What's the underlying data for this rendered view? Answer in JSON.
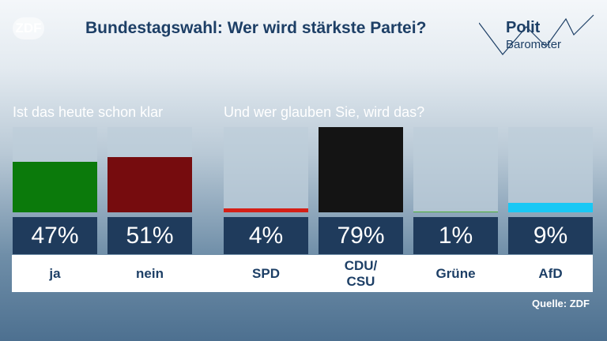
{
  "header": {
    "logo": "ZDF",
    "title": "Bundestagswahl: Wer wird stärkste Partei?",
    "brand_line1": "Polit",
    "brand_line2": "Barometer"
  },
  "chart_data": [
    {
      "type": "bar",
      "title": "Ist das heute schon klar",
      "categories": [
        "ja",
        "nein"
      ],
      "values": [
        47,
        51
      ],
      "value_labels": [
        "47%",
        "51%"
      ],
      "colors": [
        "#0b7a0b",
        "#760c0e"
      ],
      "ylim": [
        0,
        79
      ]
    },
    {
      "type": "bar",
      "title": "Und wer glauben Sie, wird das?",
      "categories": [
        "SPD",
        "CDU/\nCSU",
        "Grüne",
        "AfD"
      ],
      "values": [
        4,
        79,
        1,
        9
      ],
      "value_labels": [
        "4%",
        "79%",
        "1%",
        "9%"
      ],
      "colors": [
        "#d41f16",
        "#141414",
        "#4caf3a",
        "#19c8f5"
      ],
      "ylim": [
        0,
        79
      ]
    }
  ],
  "source": "Quelle: ZDF"
}
